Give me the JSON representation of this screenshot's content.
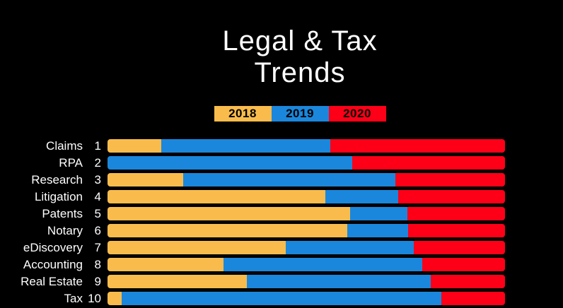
{
  "title": {
    "line1": "Legal & Tax",
    "line2": "Trends"
  },
  "legend": [
    {
      "label": "2018",
      "color": "#F9BC4C"
    },
    {
      "label": "2019",
      "color": "#1B87DC"
    },
    {
      "label": "2020",
      "color": "#FD0017"
    }
  ],
  "colors": {
    "background": "#000000",
    "label_text": "#FFFFFF",
    "legend_text": "#000000",
    "orange_2018": "#F9BC4C",
    "blue_2019": "#1B87DC",
    "red_2020": "#FD0017"
  },
  "chart_data": {
    "type": "bar",
    "orientation": "horizontal",
    "stacked": true,
    "title": "Legal & Tax Trends",
    "xlabel": "",
    "ylabel": "",
    "legend_position": "top",
    "grid": false,
    "units": "percent of full bar width (each row totals 100)",
    "categories": [
      "Claims",
      "RPA",
      "Research",
      "Litigation",
      "Patents",
      "Notary",
      "eDiscovery",
      "Accounting",
      "Real Estate",
      "Tax"
    ],
    "ranks": [
      1,
      2,
      3,
      4,
      5,
      6,
      7,
      8,
      9,
      10
    ],
    "series": [
      {
        "name": "2018",
        "color": "#F9BC4C",
        "values": [
          13.6,
          0.0,
          19.1,
          54.8,
          61.1,
          60.4,
          44.8,
          29.1,
          35.1,
          3.5
        ]
      },
      {
        "name": "2019",
        "color": "#1B87DC",
        "values": [
          42.4,
          61.5,
          53.3,
          18.4,
          14.3,
          15.3,
          32.2,
          50.0,
          46.3,
          80.5
        ]
      },
      {
        "name": "2020",
        "color": "#FD0017",
        "values": [
          44.0,
          38.5,
          27.6,
          26.8,
          24.6,
          24.3,
          23.0,
          20.9,
          18.6,
          16.0
        ]
      }
    ]
  }
}
